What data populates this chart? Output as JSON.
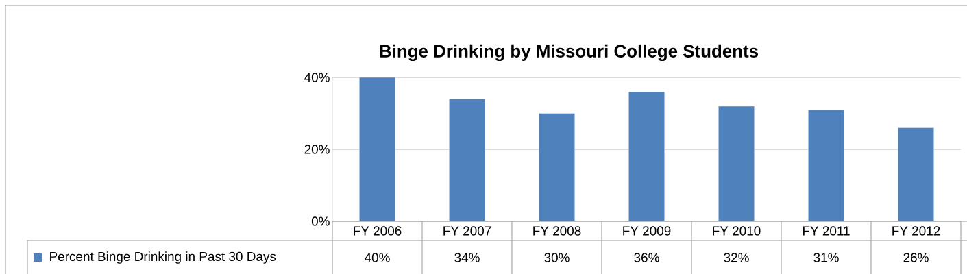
{
  "chart_data": {
    "type": "bar",
    "title": "Binge Drinking by Missouri College Students",
    "categories": [
      "FY 2006",
      "FY 2007",
      "FY 2008",
      "FY 2009",
      "FY 2010",
      "FY 2011",
      "FY 2012"
    ],
    "series": [
      {
        "name": "Percent Binge Drinking in Past 30 Days",
        "color": "#4f81bd",
        "values": [
          40,
          34,
          30,
          36,
          32,
          31,
          26
        ],
        "value_labels": [
          "40%",
          "34%",
          "30%",
          "36%",
          "32%",
          "31%",
          "26%"
        ]
      }
    ],
    "ylim": [
      0,
      40
    ],
    "yticks": [
      {
        "value": 0,
        "label": "0%"
      },
      {
        "value": 20,
        "label": "20%"
      },
      {
        "value": 40,
        "label": "40%"
      }
    ],
    "grid": "y",
    "legend": "bottom"
  }
}
